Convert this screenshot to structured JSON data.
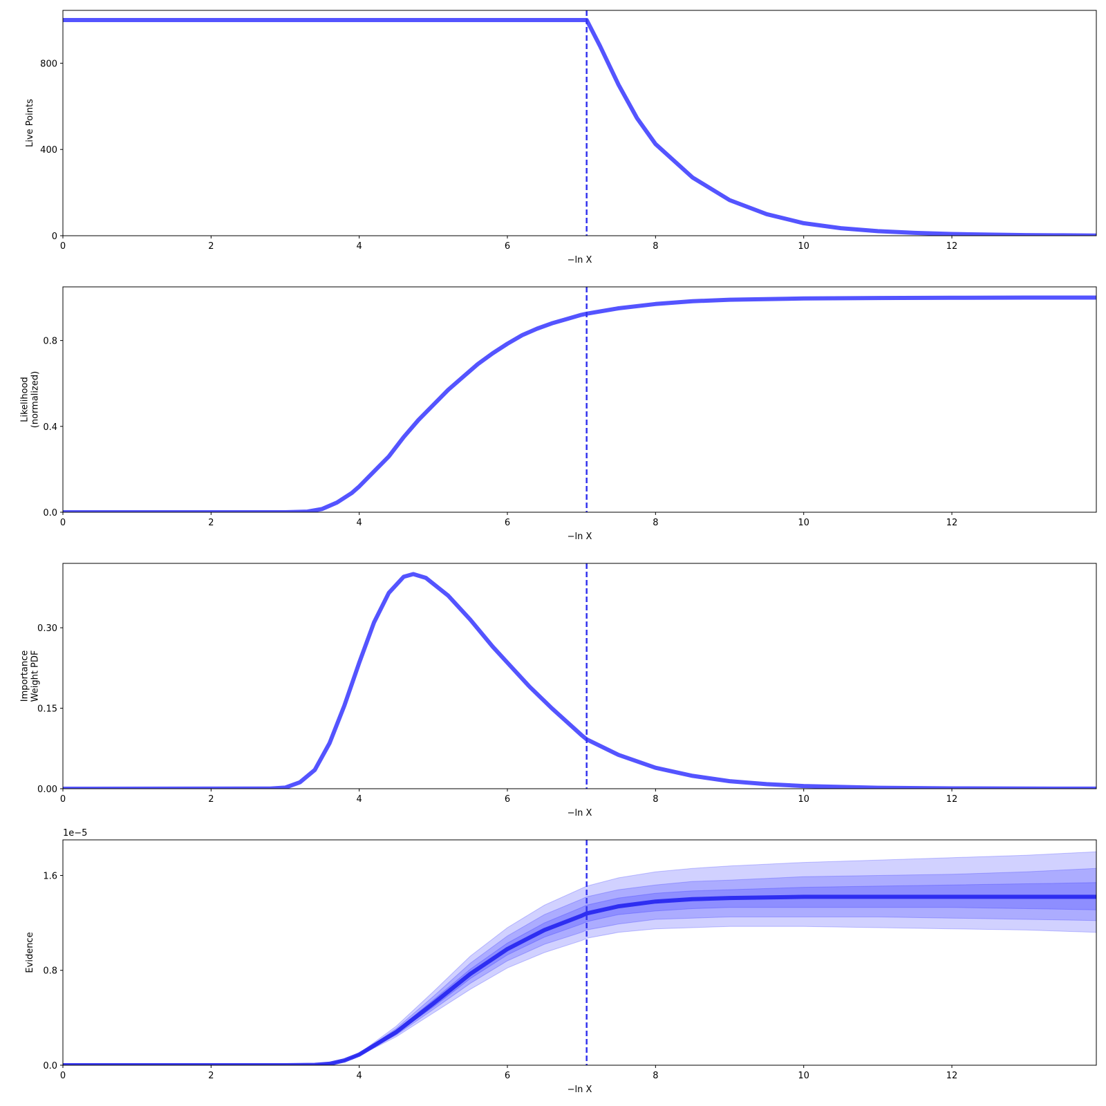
{
  "colors": {
    "line": "#4b4bff",
    "marker": "#3333ee",
    "band": "#1a1aff",
    "evidence_line": "#2323f0"
  },
  "chart_data": [
    {
      "type": "line",
      "xlabel": "−ln X",
      "ylabel": [
        "Live Points"
      ],
      "xlim": [
        0,
        13.95
      ],
      "ylim": [
        0,
        1045
      ],
      "xticks": [
        0,
        2,
        4,
        6,
        8,
        10,
        12
      ],
      "yticks": [
        0,
        400,
        800
      ],
      "ytick_labels": [
        "0",
        "400",
        "800"
      ],
      "grid": false,
      "marker_x": 7.07,
      "series": [
        {
          "x": [
            0,
            7.07,
            7.25,
            7.5,
            7.75,
            8,
            8.5,
            9,
            9.5,
            10,
            10.5,
            11,
            11.5,
            12,
            12.5,
            13,
            13.5,
            13.95
          ],
          "y": [
            1000,
            1000,
            880,
            700,
            545,
            425,
            270,
            165,
            100,
            58,
            35,
            21,
            13,
            8,
            5,
            3,
            2,
            1
          ]
        }
      ]
    },
    {
      "type": "line",
      "xlabel": "−ln X",
      "ylabel": [
        "Likelihood",
        "(normalized)"
      ],
      "xlim": [
        0,
        13.95
      ],
      "ylim": [
        0,
        1.05
      ],
      "xticks": [
        0,
        2,
        4,
        6,
        8,
        10,
        12
      ],
      "yticks": [
        0,
        0.4,
        0.8
      ],
      "ytick_labels": [
        "0.0",
        "0.4",
        "0.8"
      ],
      "grid": false,
      "marker_x": 7.07,
      "series": [
        {
          "x": [
            0,
            3.0,
            3.3,
            3.5,
            3.7,
            3.9,
            4.0,
            4.2,
            4.4,
            4.6,
            4.8,
            5.0,
            5.2,
            5.4,
            5.6,
            5.8,
            6.0,
            6.2,
            6.4,
            6.6,
            6.8,
            7.0,
            7.07,
            7.5,
            8.0,
            8.5,
            9.0,
            10.0,
            11.0,
            12.0,
            13.0,
            13.95
          ],
          "y": [
            0,
            0,
            0.003,
            0.015,
            0.045,
            0.09,
            0.12,
            0.19,
            0.26,
            0.35,
            0.43,
            0.5,
            0.57,
            0.63,
            0.69,
            0.74,
            0.785,
            0.825,
            0.855,
            0.88,
            0.9,
            0.92,
            0.925,
            0.95,
            0.97,
            0.983,
            0.99,
            0.996,
            0.998,
            0.999,
            1.0,
            1.0
          ]
        }
      ]
    },
    {
      "type": "line",
      "xlabel": "−ln X",
      "ylabel": [
        "Importance",
        "Weight PDF"
      ],
      "xlim": [
        0,
        13.95
      ],
      "ylim": [
        0,
        0.42
      ],
      "xticks": [
        0,
        2,
        4,
        6,
        8,
        10,
        12
      ],
      "yticks": [
        0,
        0.15,
        0.3
      ],
      "ytick_labels": [
        "0.00",
        "0.15",
        "0.30"
      ],
      "grid": false,
      "marker_x": 7.07,
      "series": [
        {
          "x": [
            0,
            2.8,
            3.0,
            3.2,
            3.4,
            3.6,
            3.8,
            4.0,
            4.2,
            4.4,
            4.6,
            4.73,
            4.9,
            5.2,
            5.5,
            5.8,
            6.0,
            6.3,
            6.6,
            7.0,
            7.07,
            7.5,
            8.0,
            8.5,
            9.0,
            9.5,
            10.0,
            11.0,
            12.0,
            13.0,
            13.95
          ],
          "y": [
            0,
            0.0003,
            0.002,
            0.012,
            0.035,
            0.085,
            0.155,
            0.235,
            0.31,
            0.365,
            0.395,
            0.4,
            0.393,
            0.36,
            0.315,
            0.265,
            0.235,
            0.19,
            0.15,
            0.1,
            0.092,
            0.063,
            0.039,
            0.024,
            0.014,
            0.0085,
            0.005,
            0.0018,
            0.0006,
            0.0002,
            0.0001
          ]
        }
      ]
    },
    {
      "type": "area",
      "xlabel": "−ln X",
      "ylabel": [
        "Evidence"
      ],
      "xlim": [
        0,
        13.95
      ],
      "ylim": [
        0,
        1.9
      ],
      "xticks": [
        0,
        2,
        4,
        6,
        8,
        10,
        12
      ],
      "yticks": [
        0,
        0.8,
        1.6
      ],
      "ytick_labels": [
        "0.0",
        "0.8",
        "1.6"
      ],
      "offset_text": "1e−5",
      "grid": false,
      "marker_x": 7.07,
      "x": [
        0,
        3.0,
        3.4,
        3.6,
        3.8,
        4.0,
        4.5,
        5.0,
        5.5,
        6.0,
        6.5,
        7.0,
        7.07,
        7.5,
        8.0,
        8.5,
        9.0,
        10.0,
        11.0,
        12.0,
        13.0,
        13.95
      ],
      "series": [
        {
          "values": [
            0,
            0,
            0.003,
            0.012,
            0.04,
            0.09,
            0.28,
            0.52,
            0.77,
            0.98,
            1.14,
            1.26,
            1.28,
            1.34,
            1.38,
            1.4,
            1.41,
            1.42,
            1.42,
            1.42,
            1.42,
            1.42
          ]
        }
      ],
      "bands": [
        {
          "level": 3,
          "lower": [
            0,
            0,
            0.003,
            0.011,
            0.037,
            0.08,
            0.24,
            0.44,
            0.64,
            0.82,
            0.95,
            1.05,
            1.07,
            1.12,
            1.15,
            1.16,
            1.17,
            1.17,
            1.16,
            1.15,
            1.14,
            1.12
          ],
          "upper": [
            0,
            0,
            0.003,
            0.013,
            0.043,
            0.1,
            0.33,
            0.62,
            0.92,
            1.16,
            1.35,
            1.49,
            1.51,
            1.58,
            1.63,
            1.66,
            1.68,
            1.71,
            1.73,
            1.75,
            1.77,
            1.8
          ]
        },
        {
          "level": 2,
          "lower": [
            0,
            0,
            0.003,
            0.011,
            0.038,
            0.085,
            0.255,
            0.47,
            0.69,
            0.88,
            1.02,
            1.12,
            1.14,
            1.19,
            1.23,
            1.24,
            1.25,
            1.25,
            1.25,
            1.24,
            1.23,
            1.22
          ],
          "upper": [
            0,
            0,
            0.003,
            0.013,
            0.042,
            0.095,
            0.31,
            0.58,
            0.86,
            1.09,
            1.27,
            1.4,
            1.42,
            1.48,
            1.52,
            1.55,
            1.56,
            1.59,
            1.6,
            1.61,
            1.63,
            1.66
          ]
        },
        {
          "level": 1,
          "lower": [
            0,
            0,
            0.003,
            0.012,
            0.039,
            0.087,
            0.27,
            0.49,
            0.73,
            0.93,
            1.08,
            1.19,
            1.21,
            1.27,
            1.3,
            1.32,
            1.33,
            1.33,
            1.33,
            1.33,
            1.32,
            1.31
          ],
          "upper": [
            0,
            0,
            0.003,
            0.012,
            0.041,
            0.093,
            0.295,
            0.55,
            0.81,
            1.03,
            1.2,
            1.33,
            1.35,
            1.41,
            1.45,
            1.47,
            1.48,
            1.5,
            1.51,
            1.52,
            1.53,
            1.54
          ]
        }
      ]
    }
  ]
}
